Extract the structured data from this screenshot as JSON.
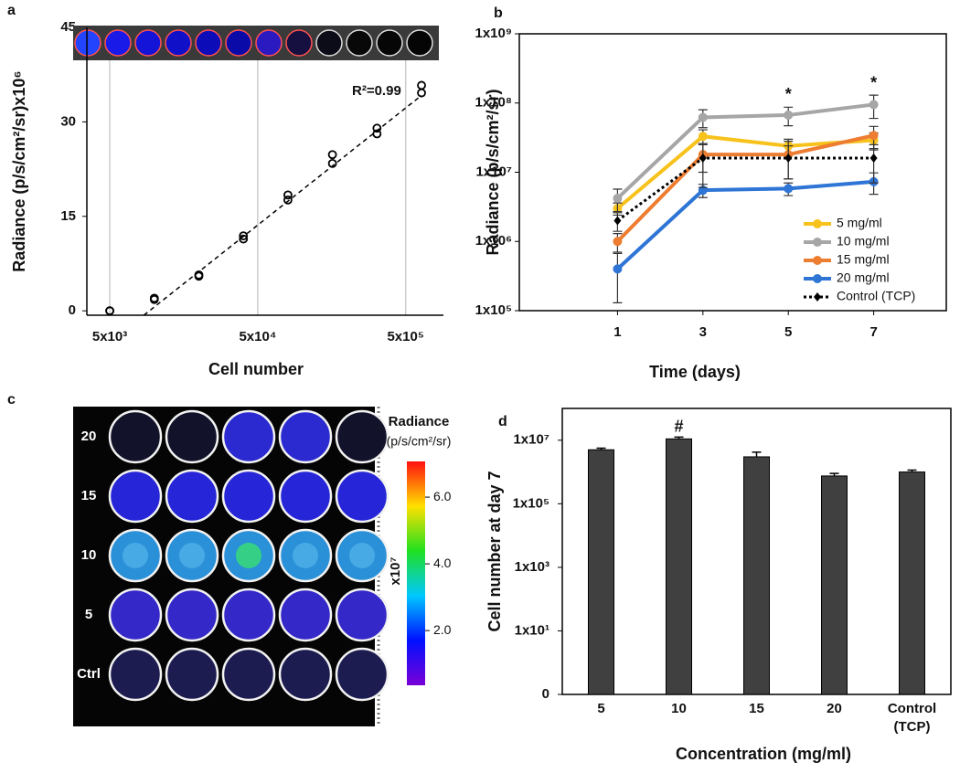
{
  "chart_data": [
    {
      "type": "scatter",
      "panel_label": "a",
      "xlabel": "Cell number",
      "ylabel": "Radiance (p/s/cm²/sr)x10⁶",
      "annotation": "R²=0.99",
      "xscale": "log",
      "xlim": [
        3500,
        900000
      ],
      "xticks": [
        {
          "value": 5000,
          "label": "5x10³"
        },
        {
          "value": 50000,
          "label": "5x10⁴"
        },
        {
          "value": 500000,
          "label": "5x10⁵"
        }
      ],
      "ylim": [
        -0.7,
        45
      ],
      "yticks": [
        0,
        15,
        30,
        45
      ],
      "grid_x": true,
      "marker_color": "#000000",
      "x": [
        5000,
        5000,
        10000,
        10000,
        20000,
        20000,
        40000,
        40000,
        80000,
        80000,
        160000,
        160000,
        320000,
        320000,
        640000,
        640000
      ],
      "y": [
        0,
        0,
        1.8,
        2,
        5.5,
        5.7,
        11.4,
        11.9,
        17.6,
        18.4,
        23.4,
        24.8,
        28.1,
        29,
        34.6,
        35.8
      ],
      "trendline": {
        "x": [
          8500,
          640000
        ],
        "y": [
          -0.7,
          34.2
        ]
      }
    },
    {
      "type": "line",
      "panel_label": "b",
      "xlabel": "Time (days)",
      "ylabel": "Radiance (p/s/cm²/sr)",
      "x": [
        1,
        3,
        5,
        7
      ],
      "xlim": [
        -1.3,
        8.7
      ],
      "xticks": [
        1,
        3,
        5,
        7
      ],
      "yscale": "log",
      "ylim": [
        100000,
        1000000000
      ],
      "yticks": [
        {
          "value": 100000,
          "label": "1x10⁵"
        },
        {
          "value": 1000000,
          "label": "1x10⁶"
        },
        {
          "value": 10000000,
          "label": "1x10⁷"
        },
        {
          "value": 100000000,
          "label": "1x10⁸"
        },
        {
          "value": 1000000000,
          "label": "1x10⁹"
        }
      ],
      "legend": "lower right",
      "series": [
        {
          "name": "5 mg/ml",
          "color": "#f7c21b",
          "values": [
            3000000,
            33000000,
            24000000,
            29000000
          ],
          "errors": [
            600000,
            8000000,
            6000000,
            8000000
          ]
        },
        {
          "name": "10 mg/ml",
          "color": "#a6a6a6",
          "values": [
            4200000,
            62000000,
            67000000,
            95000000
          ],
          "errors": [
            1500000,
            18000000,
            20000000,
            35000000
          ]
        },
        {
          "name": "15 mg/ml",
          "color": "#ed7d31",
          "values": [
            1000000,
            18000000,
            18000000,
            34000000
          ],
          "errors": [
            300000,
            8000000,
            10000000,
            12000000
          ]
        },
        {
          "name": "20 mg/ml",
          "color": "#2e75d6",
          "values": [
            400000,
            5500000,
            5800000,
            7300000
          ],
          "errors": [
            270000,
            1200000,
            1200000,
            2500000
          ]
        },
        {
          "name": "Control (TCP)",
          "color": "#000000",
          "dash": true,
          "marker": "diamond",
          "values": [
            2000000,
            16000000,
            16000000,
            16000000
          ],
          "errors": [
            600000,
            10000000,
            8000000,
            9000000
          ]
        }
      ],
      "annotations": [
        {
          "text": "*",
          "x": 5,
          "y": 130000000
        },
        {
          "text": "*",
          "x": 7,
          "y": 190000000
        }
      ]
    },
    {
      "type": "image",
      "panel_label": "c",
      "row_labels": [
        "20",
        "15",
        "10",
        "5",
        "Ctrl"
      ],
      "colorbar": {
        "title": "Radiance",
        "unit": "(p/s/cm²/sr)",
        "multiplier": "x10⁷",
        "lim": [
          0.36,
          7.07
        ],
        "ticks": [
          {
            "value": 2,
            "label": "2.0"
          },
          {
            "value": 4,
            "label": "4.0"
          },
          {
            "value": 6,
            "label": "6.0"
          }
        ]
      }
    },
    {
      "type": "bar",
      "panel_label": "d",
      "xlabel": "Concentration (mg/ml)",
      "ylabel": "Cell number at day 7",
      "categories": [
        "5",
        "10",
        "15",
        "20",
        "Control (TCP)"
      ],
      "values": [
        5000000,
        11000000,
        3000000,
        750000,
        1000000
      ],
      "errors": [
        600000,
        1500000,
        1200000,
        150000,
        150000
      ],
      "color": "#404040",
      "yscale": "log",
      "ylim": [
        0.1,
        100000000
      ],
      "yticks": [
        {
          "value": 0.1,
          "label": "0"
        },
        {
          "value": 10,
          "label": "1x10¹"
        },
        {
          "value": 1000,
          "label": "1x10³"
        },
        {
          "value": 100000,
          "label": "1x10⁵"
        },
        {
          "value": 10000000,
          "label": "1x10⁷"
        }
      ],
      "annotations": [
        {
          "text": "#",
          "category": "10",
          "y": 25000000
        }
      ]
    }
  ]
}
